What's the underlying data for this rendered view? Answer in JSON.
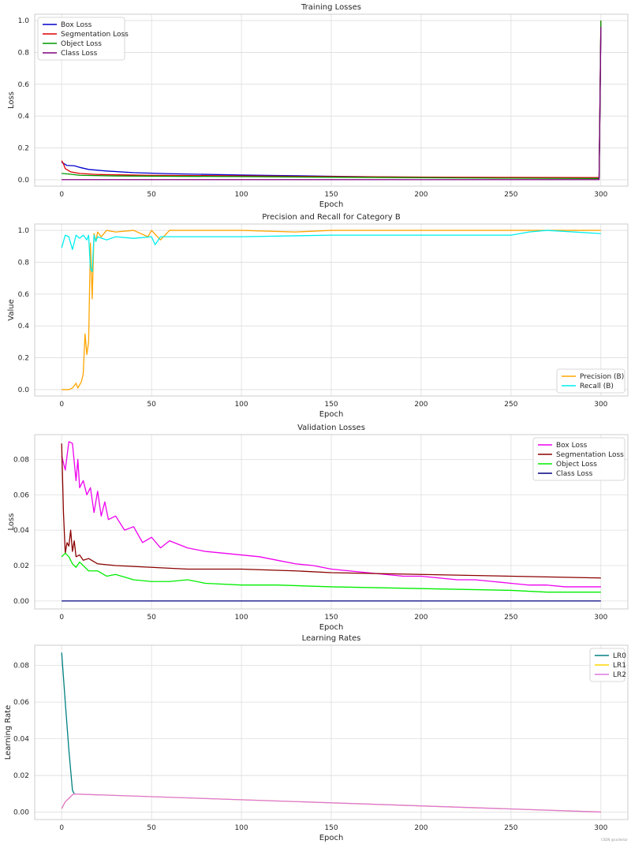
{
  "watermark": "CSDN @codestar",
  "chart_data": [
    {
      "type": "line",
      "title": "Training Losses",
      "xlabel": "Epoch",
      "ylabel": "Loss",
      "xlim": [
        -15,
        315
      ],
      "ylim": [
        -0.04,
        1.04
      ],
      "xticks": [
        0,
        50,
        100,
        150,
        200,
        250,
        300
      ],
      "yticks": [
        0.0,
        0.2,
        0.4,
        0.6,
        0.8,
        1.0
      ],
      "ytick_labels": [
        "0.0",
        "0.2",
        "0.4",
        "0.6",
        "0.8",
        "1.0"
      ],
      "grid": true,
      "legend_position": "upper-left",
      "series": [
        {
          "name": "Box Loss",
          "color": "#0000cc",
          "x": [
            0,
            3,
            7,
            10,
            15,
            25,
            40,
            60,
            80,
            100,
            120,
            150,
            180,
            200,
            220,
            250,
            280,
            299,
            300
          ],
          "y": [
            0.11,
            0.09,
            0.088,
            0.078,
            0.065,
            0.055,
            0.045,
            0.038,
            0.034,
            0.03,
            0.027,
            0.022,
            0.018,
            0.016,
            0.014,
            0.012,
            0.011,
            0.01,
            0.97
          ]
        },
        {
          "name": "Segmentation Loss",
          "color": "#dd0000",
          "x": [
            0,
            1,
            2,
            5,
            10,
            20,
            50,
            100,
            150,
            200,
            250,
            299,
            300
          ],
          "y": [
            0.12,
            0.1,
            0.07,
            0.05,
            0.04,
            0.033,
            0.028,
            0.024,
            0.02,
            0.017,
            0.015,
            0.014,
            1.0
          ]
        },
        {
          "name": "Object Loss",
          "color": "#009900",
          "x": [
            0,
            5,
            10,
            30,
            60,
            100,
            150,
            200,
            250,
            299,
            300
          ],
          "y": [
            0.04,
            0.035,
            0.028,
            0.024,
            0.022,
            0.02,
            0.016,
            0.013,
            0.01,
            0.008,
            1.0
          ]
        },
        {
          "name": "Class Loss",
          "color": "#800080",
          "x": [
            0,
            50,
            100,
            150,
            200,
            250,
            299,
            300
          ],
          "y": [
            0.001,
            0.001,
            0.001,
            0.001,
            0.001,
            0.001,
            0.001,
            0.96
          ]
        }
      ]
    },
    {
      "type": "line",
      "title": "Precision and Recall for Category B",
      "xlabel": "Epoch",
      "ylabel": "Value",
      "xlim": [
        -15,
        315
      ],
      "ylim": [
        -0.04,
        1.04
      ],
      "xticks": [
        0,
        50,
        100,
        150,
        200,
        250,
        300
      ],
      "yticks": [
        0.0,
        0.2,
        0.4,
        0.6,
        0.8,
        1.0
      ],
      "ytick_labels": [
        "0.0",
        "0.2",
        "0.4",
        "0.6",
        "0.8",
        "1.0"
      ],
      "grid": true,
      "legend_position": "lower-right",
      "series": [
        {
          "name": "Precision (B)",
          "color": "#ffa500",
          "x": [
            0,
            4,
            6,
            8,
            9,
            10,
            11,
            12,
            13,
            14,
            15,
            16,
            17,
            18,
            19,
            20,
            22,
            25,
            30,
            40,
            48,
            50,
            55,
            60,
            80,
            100,
            130,
            150,
            200,
            250,
            300
          ],
          "y": [
            0.0,
            0.0,
            0.01,
            0.04,
            0.01,
            0.03,
            0.05,
            0.1,
            0.35,
            0.22,
            0.3,
            0.92,
            0.57,
            0.98,
            0.93,
            0.99,
            0.96,
            1.0,
            0.99,
            1.0,
            0.96,
            1.0,
            0.94,
            1.0,
            1.0,
            1.0,
            0.99,
            1.0,
            1.0,
            1.0,
            1.0
          ]
        },
        {
          "name": "Recall (B)",
          "color": "#00eeee",
          "x": [
            0,
            2,
            4,
            6,
            8,
            10,
            12,
            14,
            15,
            16,
            17,
            18,
            19,
            20,
            25,
            30,
            40,
            50,
            52,
            55,
            60,
            100,
            150,
            200,
            250,
            260,
            270,
            300
          ],
          "y": [
            0.89,
            0.97,
            0.96,
            0.88,
            0.97,
            0.95,
            0.97,
            0.94,
            0.97,
            0.76,
            0.74,
            0.97,
            0.93,
            0.96,
            0.94,
            0.96,
            0.95,
            0.96,
            0.91,
            0.96,
            0.96,
            0.96,
            0.97,
            0.97,
            0.97,
            0.99,
            1.0,
            0.98
          ]
        }
      ]
    },
    {
      "type": "line",
      "title": "Validation Losses",
      "xlabel": "Epoch",
      "ylabel": "Loss",
      "xlim": [
        -15,
        315
      ],
      "ylim": [
        -0.0045,
        0.094
      ],
      "xticks": [
        0,
        50,
        100,
        150,
        200,
        250,
        300
      ],
      "yticks": [
        0.0,
        0.02,
        0.04,
        0.06,
        0.08
      ],
      "ytick_labels": [
        "0.00",
        "0.02",
        "0.04",
        "0.06",
        "0.08"
      ],
      "grid": true,
      "legend_position": "upper-right",
      "series": [
        {
          "name": "Box Loss",
          "color": "#ee00ee",
          "x": [
            0,
            2,
            4,
            6,
            8,
            9,
            10,
            12,
            14,
            16,
            18,
            20,
            22,
            24,
            26,
            30,
            35,
            40,
            45,
            50,
            55,
            60,
            70,
            80,
            90,
            100,
            110,
            120,
            130,
            140,
            150,
            160,
            170,
            180,
            190,
            200,
            210,
            220,
            230,
            240,
            250,
            260,
            270,
            280,
            290,
            300
          ],
          "y": [
            0.082,
            0.074,
            0.09,
            0.089,
            0.068,
            0.08,
            0.064,
            0.068,
            0.06,
            0.064,
            0.05,
            0.062,
            0.048,
            0.056,
            0.046,
            0.048,
            0.04,
            0.042,
            0.033,
            0.036,
            0.03,
            0.034,
            0.03,
            0.028,
            0.027,
            0.026,
            0.025,
            0.023,
            0.021,
            0.02,
            0.018,
            0.017,
            0.016,
            0.015,
            0.014,
            0.014,
            0.013,
            0.012,
            0.012,
            0.011,
            0.01,
            0.009,
            0.009,
            0.008,
            0.008,
            0.008
          ]
        },
        {
          "name": "Segmentation Loss",
          "color": "#8b0000",
          "x": [
            0,
            1,
            2,
            3,
            4,
            5,
            6,
            7,
            8,
            10,
            12,
            15,
            20,
            30,
            50,
            70,
            100,
            130,
            150,
            200,
            250,
            300
          ],
          "y": [
            0.089,
            0.05,
            0.027,
            0.033,
            0.031,
            0.04,
            0.028,
            0.034,
            0.025,
            0.026,
            0.023,
            0.024,
            0.021,
            0.02,
            0.019,
            0.018,
            0.018,
            0.017,
            0.016,
            0.015,
            0.014,
            0.013
          ]
        },
        {
          "name": "Object Loss",
          "color": "#00ee00",
          "x": [
            0,
            2,
            4,
            6,
            8,
            10,
            15,
            20,
            25,
            30,
            40,
            50,
            60,
            70,
            80,
            100,
            120,
            150,
            200,
            250,
            270,
            300
          ],
          "y": [
            0.025,
            0.027,
            0.025,
            0.021,
            0.019,
            0.022,
            0.017,
            0.017,
            0.014,
            0.015,
            0.012,
            0.011,
            0.011,
            0.012,
            0.01,
            0.009,
            0.009,
            0.008,
            0.007,
            0.006,
            0.005,
            0.005
          ]
        },
        {
          "name": "Class Loss",
          "color": "#000080",
          "x": [
            0,
            300
          ],
          "y": [
            0.0,
            0.0
          ]
        }
      ]
    },
    {
      "type": "line",
      "title": "Learning Rates",
      "xlabel": "Epoch",
      "ylabel": "Learning Rate",
      "xlim": [
        -15,
        315
      ],
      "ylim": [
        -0.004,
        0.091
      ],
      "xticks": [
        0,
        50,
        100,
        150,
        200,
        250,
        300
      ],
      "yticks": [
        0.0,
        0.02,
        0.04,
        0.06,
        0.08
      ],
      "ytick_labels": [
        "0.00",
        "0.02",
        "0.04",
        "0.06",
        "0.08"
      ],
      "grid": true,
      "legend_position": "upper-right",
      "series": [
        {
          "name": "LR0",
          "color": "#008080",
          "x": [
            0,
            2,
            4,
            6,
            7
          ],
          "y": [
            0.087,
            0.06,
            0.034,
            0.012,
            0.01
          ]
        },
        {
          "name": "LR1",
          "color": "#ffd700",
          "x": [
            0,
            2,
            4,
            6,
            7,
            300
          ],
          "y": [
            0.002,
            0.0057,
            0.0075,
            0.0095,
            0.0099,
            0.0001
          ]
        },
        {
          "name": "LR2",
          "color": "#dd77dd",
          "x": [
            0,
            2,
            4,
            6,
            7,
            300
          ],
          "y": [
            0.002,
            0.0057,
            0.0075,
            0.0095,
            0.0099,
            0.0001
          ]
        }
      ]
    }
  ]
}
